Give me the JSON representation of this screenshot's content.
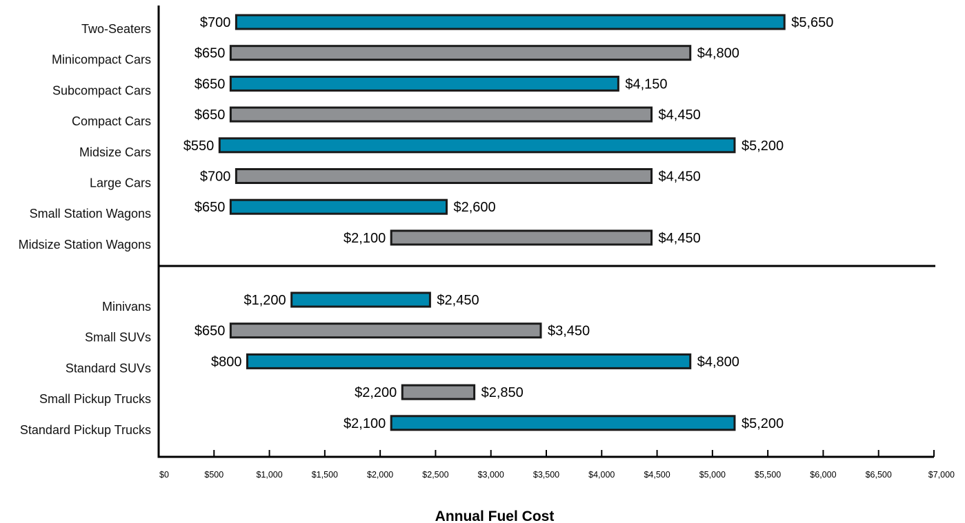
{
  "chart_data": {
    "type": "bar",
    "orientation": "horizontal-range",
    "xlabel": "Annual Fuel Cost",
    "xlim": [
      0,
      7000
    ],
    "xticks": [
      "$0",
      "$500",
      "$1,000",
      "$1,500",
      "$2,000",
      "$2,500",
      "$3,000",
      "$3,500",
      "$4,000",
      "$4,500",
      "$5,000",
      "$5,500",
      "$6,000",
      "$6,500",
      "$7,000"
    ],
    "grid": false,
    "legend": "none",
    "colors": {
      "blue": "#0089b0",
      "gray": "#8f9194",
      "outline": "#1a1a1a"
    },
    "groups": [
      {
        "rows": [
          {
            "category": "Two-Seaters",
            "low": 700,
            "high": 5650,
            "low_label": "$700",
            "high_label": "$5,650",
            "color": "blue"
          },
          {
            "category": "Minicompact Cars",
            "low": 650,
            "high": 4800,
            "low_label": "$650",
            "high_label": "$4,800",
            "color": "gray"
          },
          {
            "category": "Subcompact Cars",
            "low": 650,
            "high": 4150,
            "low_label": "$650",
            "high_label": "$4,150",
            "color": "blue"
          },
          {
            "category": "Compact Cars",
            "low": 650,
            "high": 4450,
            "low_label": "$650",
            "high_label": "$4,450",
            "color": "gray"
          },
          {
            "category": "Midsize Cars",
            "low": 550,
            "high": 5200,
            "low_label": "$550",
            "high_label": "$5,200",
            "color": "blue"
          },
          {
            "category": "Large Cars",
            "low": 700,
            "high": 4450,
            "low_label": "$700",
            "high_label": "$4,450",
            "color": "gray"
          },
          {
            "category": "Small Station Wagons",
            "low": 650,
            "high": 2600,
            "low_label": "$650",
            "high_label": "$2,600",
            "color": "blue"
          },
          {
            "category": "Midsize Station Wagons",
            "low": 2100,
            "high": 4450,
            "low_label": "$2,100",
            "high_label": "$4,450",
            "color": "gray"
          }
        ]
      },
      {
        "rows": [
          {
            "category": "Minivans",
            "low": 1200,
            "high": 2450,
            "low_label": "$1,200",
            "high_label": "$2,450",
            "color": "blue"
          },
          {
            "category": "Small SUVs",
            "low": 650,
            "high": 3450,
            "low_label": "$650",
            "high_label": "$3,450",
            "color": "gray"
          },
          {
            "category": "Standard SUVs",
            "low": 800,
            "high": 4800,
            "low_label": "$800",
            "high_label": "$4,800",
            "color": "blue"
          },
          {
            "category": "Small Pickup Trucks",
            "low": 2200,
            "high": 2850,
            "low_label": "$2,200",
            "high_label": "$2,850",
            "color": "gray"
          },
          {
            "category": "Standard Pickup Trucks",
            "low": 2100,
            "high": 5200,
            "low_label": "$2,100",
            "high_label": "$5,200",
            "color": "blue"
          }
        ]
      }
    ]
  }
}
